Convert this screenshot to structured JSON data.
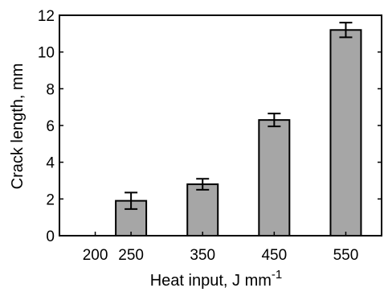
{
  "chart_data": {
    "type": "bar",
    "title": "",
    "xlabel": "Heat input, J mm",
    "xlabel_sup": "-1",
    "ylabel": "Crack length, mm",
    "categories": [
      "200",
      "250",
      "350",
      "450",
      "550"
    ],
    "x": [
      200,
      250,
      350,
      450,
      550
    ],
    "values": [
      0,
      1.9,
      2.8,
      6.3,
      11.2
    ],
    "errors": [
      0,
      0.45,
      0.3,
      0.35,
      0.4
    ],
    "xlim": [
      150,
      600
    ],
    "ylim": [
      0,
      12
    ],
    "yticks": [
      0,
      2,
      4,
      6,
      8,
      10,
      12
    ],
    "bar_color": "#a6a6a6",
    "edge_color": "#000000",
    "grid": false
  }
}
